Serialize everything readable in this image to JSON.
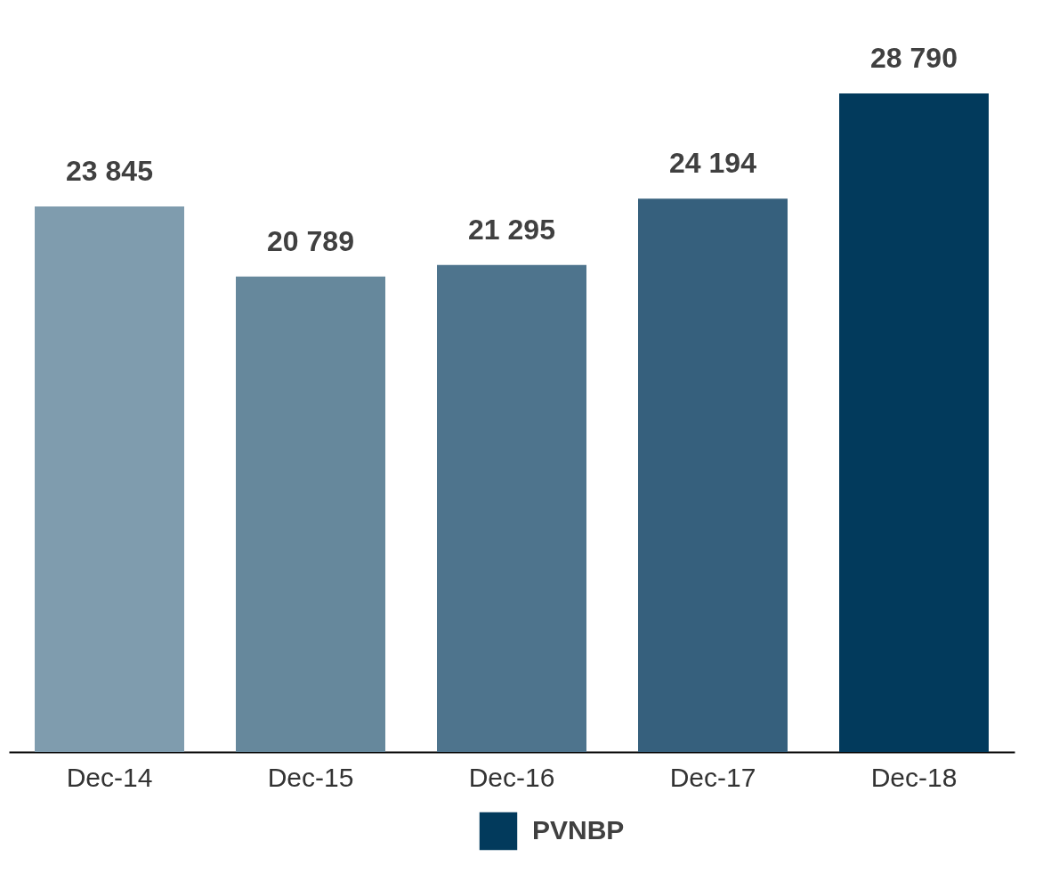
{
  "chart_data": {
    "type": "bar",
    "categories": [
      "Dec-14",
      "Dec-15",
      "Dec-16",
      "Dec-17",
      "Dec-18"
    ],
    "series": [
      {
        "name": "PVNBP",
        "color": "#023a5c",
        "colors": [
          "#7f9cae",
          "#66889c",
          "#4e748d",
          "#36607d",
          "#023a5c"
        ],
        "values": [
          23845,
          20789,
          21295,
          24194,
          28790
        ],
        "value_labels": [
          "23 845",
          "20 789",
          "21 295",
          "24 194",
          "28 790"
        ]
      }
    ],
    "legend": "bottom"
  }
}
